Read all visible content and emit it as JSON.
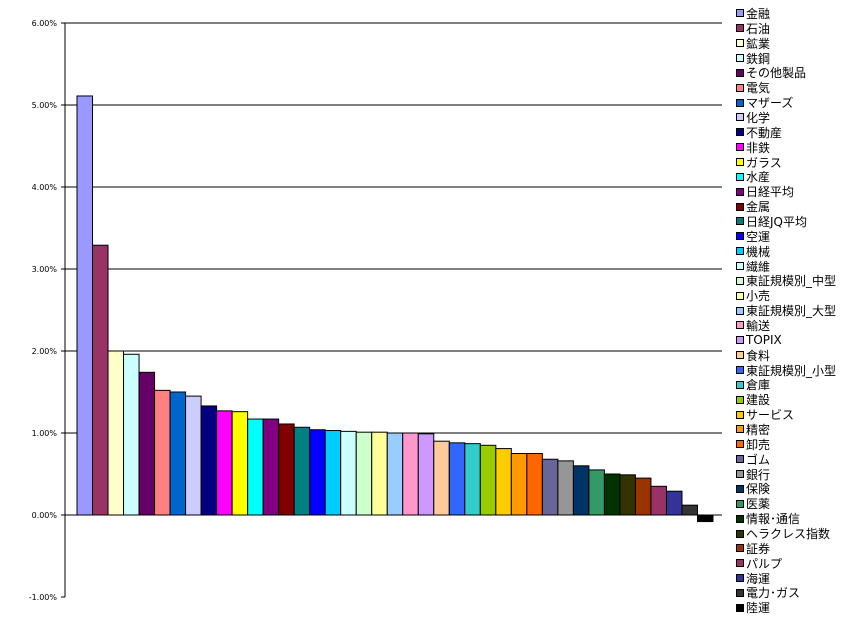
{
  "chart_data": {
    "type": "bar",
    "title": "",
    "xlabel": "",
    "ylabel": "",
    "ylim": [
      -1,
      6
    ],
    "yticks": [
      "6.00%",
      "5.00%",
      "4.00%",
      "3.00%",
      "2.00%",
      "1.00%",
      "0.00%",
      "-1.00%"
    ],
    "grid": true,
    "legend_position": "right",
    "categories": [
      "金融",
      "石油",
      "鉱業",
      "鉄鋼",
      "その他製品",
      "電気",
      "マザーズ",
      "化学",
      "不動産",
      "非鉄",
      "ガラス",
      "水産",
      "日経平均",
      "金属",
      "日経JQ平均",
      "空運",
      "機械",
      "繊維",
      "東証規模別_中型",
      "小売",
      "東証規模別_大型",
      "輸送",
      "TOPIX",
      "食料",
      "東証規模別_小型",
      "倉庫",
      "建設",
      "サービス",
      "精密",
      "卸売",
      "ゴム",
      "銀行",
      "保険",
      "医薬",
      "情報･通信",
      "ヘラクレス指数",
      "証券",
      "パルプ",
      "海運",
      "電力･ガス",
      "陸運"
    ],
    "values": [
      5.11,
      3.29,
      2.0,
      1.96,
      1.74,
      1.52,
      1.5,
      1.45,
      1.33,
      1.27,
      1.26,
      1.17,
      1.17,
      1.11,
      1.07,
      1.04,
      1.03,
      1.02,
      1.01,
      1.01,
      1.0,
      1.0,
      0.99,
      0.9,
      0.88,
      0.87,
      0.85,
      0.81,
      0.75,
      0.75,
      0.68,
      0.66,
      0.6,
      0.55,
      0.5,
      0.49,
      0.45,
      0.35,
      0.29,
      0.12,
      -0.08
    ],
    "colors": [
      "#9999FF",
      "#993366",
      "#FFFFCC",
      "#CCFFFF",
      "#660066",
      "#FF8080",
      "#0066CC",
      "#CCCCFF",
      "#000080",
      "#FF00FF",
      "#FFFF00",
      "#00FFFF",
      "#800080",
      "#800000",
      "#008080",
      "#0000FF",
      "#00CCFF",
      "#CCFFFF",
      "#CCFFCC",
      "#FFFF99",
      "#99CCFF",
      "#FF99CC",
      "#CC99FF",
      "#FFCC99",
      "#3366FF",
      "#33CCCC",
      "#99CC00",
      "#FFCC00",
      "#FF9900",
      "#FF6600",
      "#666699",
      "#969696",
      "#003366",
      "#339966",
      "#003300",
      "#333300",
      "#993300",
      "#993366",
      "#333399",
      "#333333",
      "#000000"
    ]
  }
}
